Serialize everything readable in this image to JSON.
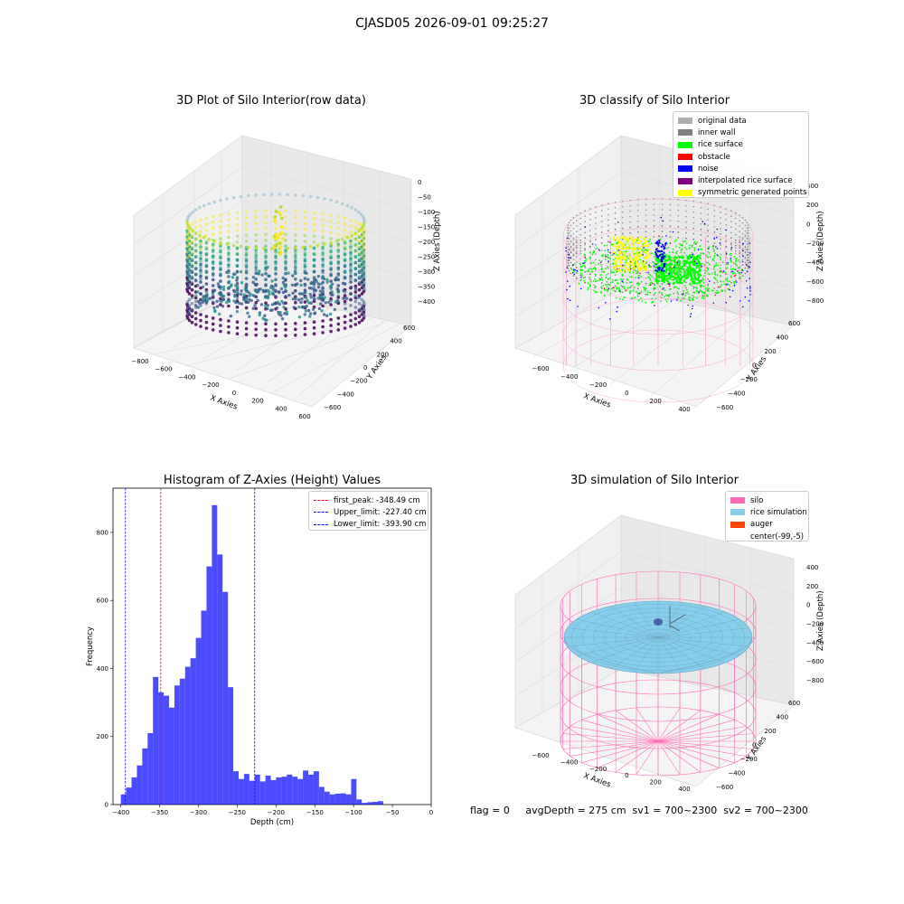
{
  "figure": {
    "suptitle": "CJASD05 2026-09-01 09:25:27",
    "footer": "flag = 0     avgDepth = 275 cm  sv1 = 700~2300  sv2 = 700~2300"
  },
  "panels": {
    "raw": {
      "title": "3D Plot of Silo Interior(row data)",
      "xlabel": "X Axies",
      "ylabel": "Y Axies",
      "zlabel": "Z Axies (Depth)",
      "xticks": [
        "−800",
        "−600",
        "−400",
        "−200",
        "0",
        "200",
        "400",
        "600"
      ],
      "yticks": [
        "600",
        "400",
        "200",
        "0",
        "−200",
        "−400",
        "−600"
      ],
      "zticks": [
        "0",
        "−50",
        "−100",
        "−150",
        "−200",
        "−250",
        "−300",
        "−350",
        "−400"
      ]
    },
    "classify": {
      "title": "3D classify of Silo Interior",
      "xlabel": "X Axies",
      "ylabel": "Y Axies",
      "zlabel": "Z Axies (Depth)",
      "xticks": [
        "−600",
        "−400",
        "−200",
        "0",
        "200",
        "400"
      ],
      "yticks": [
        "600",
        "400",
        "200",
        "0",
        "−200",
        "−400",
        "−600"
      ],
      "zticks": [
        "400",
        "200",
        "0",
        "−200",
        "−400",
        "−600",
        "−800"
      ],
      "legend": [
        {
          "label": "original data",
          "color": "#b0b0b0"
        },
        {
          "label": "inner wall",
          "color": "#808080"
        },
        {
          "label": "rice surface",
          "color": "#00ff00"
        },
        {
          "label": "obstacle",
          "color": "#ff0000"
        },
        {
          "label": "noise",
          "color": "#0000ff"
        },
        {
          "label": "interpolated rice surface",
          "color": "#800080"
        },
        {
          "label": "symmetric generated points",
          "color": "#ffff00"
        }
      ]
    },
    "simulation": {
      "title": "3D simulation of Silo Interior",
      "xlabel": "X Axies",
      "ylabel": "Y Axies",
      "zlabel": "Z Axies (Depth)",
      "xticks": [
        "−600",
        "−400",
        "−200",
        "0",
        "200",
        "400"
      ],
      "yticks": [
        "600",
        "400",
        "200",
        "0",
        "−200",
        "−400",
        "−600"
      ],
      "zticks": [
        "400",
        "200",
        "0",
        "−200",
        "−400",
        "−600",
        "−800"
      ],
      "legend": [
        {
          "label": "silo",
          "color": "#ff69b4"
        },
        {
          "label": "rice simulation",
          "color": "#87ceeb"
        },
        {
          "label": "auger",
          "color": "#ff4500"
        },
        {
          "label": "center(-99,-5)",
          "color": "#ffffff"
        }
      ]
    }
  },
  "chart_data": {
    "type": "bar",
    "title": "Histogram of Z-Axies (Height) Values",
    "xlabel": "Depth (cm)",
    "ylabel": "Frequency",
    "xlim": [
      -410,
      0
    ],
    "ylim": [
      0,
      930
    ],
    "xticks": [
      -400,
      -350,
      -300,
      -250,
      -200,
      -150,
      -100,
      -50,
      0
    ],
    "xtick_labels": [
      "−400",
      "−350",
      "−300",
      "−250",
      "−200",
      "−150",
      "−100",
      "−50",
      "0"
    ],
    "yticks": [
      0,
      200,
      400,
      600,
      800
    ],
    "bar_color": "#0000ff",
    "bin_width": 6.9,
    "bin_start": -399.9,
    "values": [
      30,
      50,
      80,
      115,
      165,
      210,
      375,
      330,
      320,
      285,
      350,
      370,
      405,
      430,
      490,
      570,
      700,
      880,
      735,
      625,
      345,
      98,
      75,
      90,
      70,
      88,
      68,
      85,
      72,
      80,
      82,
      88,
      82,
      75,
      100,
      88,
      98,
      52,
      38,
      30,
      32,
      33,
      30,
      75,
      15,
      5,
      7,
      8,
      10
    ],
    "vlines": [
      {
        "label": "first_peak: -348.49 cm",
        "x": -348.49,
        "color": "#ff0000"
      },
      {
        "label": "Upper_limit: -227.40 cm",
        "x": -227.4,
        "color": "#0000ff"
      },
      {
        "label": "Lower_limit: -393.90 cm",
        "x": -393.9,
        "color": "#0000ff"
      }
    ]
  }
}
